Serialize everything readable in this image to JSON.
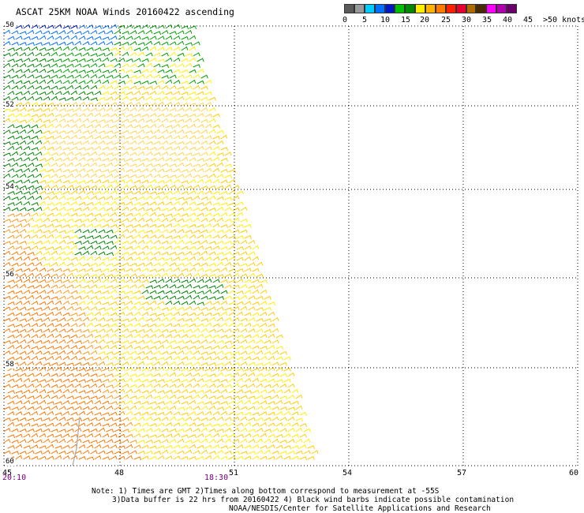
{
  "title": "ASCAT 25KM NOAA Winds 20160422 ascending",
  "legend": {
    "colors": [
      "#5a5a5a",
      "#9a9a9a",
      "#00ccff",
      "#0070ff",
      "#0018c8",
      "#00c000",
      "#008800",
      "#ffee00",
      "#ffb000",
      "#ff7800",
      "#ff2000",
      "#e80030",
      "#b06a00",
      "#4a2a00",
      "#ff00ff",
      "#b000b0",
      "#6a006a"
    ],
    "labels": [
      "0",
      "5",
      "10",
      "15",
      "20",
      "25",
      "30",
      "35",
      "40",
      "45",
      ">50 knots"
    ]
  },
  "axes": {
    "lon_labels": [
      "45",
      "48",
      "51",
      "54",
      "57",
      "60"
    ],
    "lat_labels": [
      "50",
      "52",
      "54",
      "56",
      "58",
      "60"
    ],
    "time_labels": [
      "20:10",
      "18:30"
    ]
  },
  "notes": {
    "line1": "Note: 1) Times are GMT 2)Times along bottom correspond to measurement at -55S",
    "line2": "3)Data buffer is 22 hrs from 20160422 4) Black wind barbs indicate possible contamination",
    "line3": "NOAA/NESDIS/Center for Satellite Applications and Research"
  },
  "colors": {
    "plot_bg": "#ffffff",
    "grid": "#000000",
    "contour": "#a8a8a8"
  }
}
